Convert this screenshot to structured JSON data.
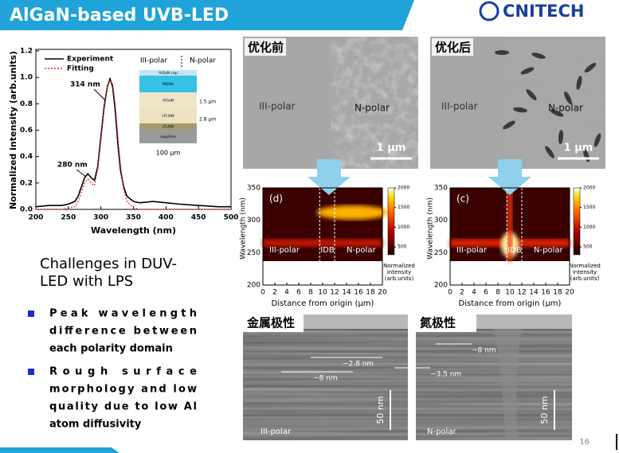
{
  "header": {
    "title": "AlGaN-based UVB-LED",
    "logo": "CNITECH"
  },
  "chart_data": {
    "type": "line",
    "xlabel": "Wavelength (nm)",
    "ylabel": "Normalized intensity (arb.units)",
    "x": [
      200,
      220,
      240,
      250,
      260,
      265,
      270,
      275,
      280,
      285,
      290,
      295,
      300,
      305,
      310,
      314,
      318,
      322,
      326,
      330,
      335,
      340,
      350,
      360,
      380,
      400,
      420,
      450,
      480,
      500
    ],
    "series": [
      {
        "name": "Experiment",
        "color": "#000000",
        "values": [
          0.02,
          0.03,
          0.03,
          0.04,
          0.06,
          0.1,
          0.17,
          0.24,
          0.27,
          0.24,
          0.22,
          0.32,
          0.55,
          0.78,
          0.93,
          0.99,
          0.93,
          0.75,
          0.5,
          0.3,
          0.17,
          0.1,
          0.06,
          0.05,
          0.06,
          0.05,
          0.04,
          0.03,
          0.02,
          0.02
        ]
      },
      {
        "name": "Fitting",
        "color": "#e03030",
        "values": [
          0,
          0,
          0,
          0.01,
          0.02,
          0.06,
          0.13,
          0.2,
          0.23,
          0.2,
          0.18,
          0.3,
          0.52,
          0.76,
          0.93,
          0.98,
          0.95,
          0.8,
          0.56,
          0.34,
          0.15,
          0.06,
          0.01,
          0,
          0,
          0,
          0,
          0,
          0,
          0
        ]
      }
    ],
    "xlim": [
      200,
      500
    ],
    "ylim": [
      0,
      1.2
    ],
    "xticks": [
      200,
      250,
      300,
      350,
      400,
      450,
      500
    ],
    "yticks": [
      {
        "value": 0,
        "label": "0.0"
      },
      {
        "value": 0.2,
        "label": "0.2"
      },
      {
        "value": 0.4,
        "label": "0.4"
      },
      {
        "value": 0.6,
        "label": "0.6"
      },
      {
        "value": 0.8,
        "label": "0.8"
      },
      {
        "value": 1.0,
        "label": "1.0"
      },
      {
        "value": 1.2,
        "label": "1.2"
      }
    ],
    "annotations": [
      "314 nm",
      "280 nm",
      "III-polar",
      "N-polar"
    ],
    "inset": {
      "layers": [
        "AlGaN cap",
        "MQWs",
        "AlGaN",
        "HT-AlN",
        "LT-AlN",
        "sapphire"
      ],
      "dimensions": [
        "1.5 μm",
        "2.8 μm",
        "100 μm"
      ]
    }
  },
  "micrographs": [
    {
      "title": "优化前",
      "labels": [
        "III-polar",
        "N-polar"
      ],
      "scale": "1 μm"
    },
    {
      "title": "优化后",
      "labels": [
        "III-polar",
        "N-polar"
      ],
      "scale": "1 μm"
    }
  ],
  "heatmap_axes": {
    "xlabel": "Distance from origin (μm)",
    "ylabel": "Wavelength (nm)",
    "xlim": [
      0,
      20
    ],
    "xticks": [
      0,
      2,
      4,
      6,
      8,
      10,
      12,
      14,
      16,
      18,
      20
    ],
    "ylim": [
      200,
      350
    ],
    "yticks": [
      200,
      250,
      300,
      350
    ],
    "clim": [
      300,
      2000
    ],
    "colorbar_ticks": [
      500,
      1000,
      1500,
      2000
    ],
    "colorbar_label": [
      "Normalized",
      "intensity",
      "(arb.units)"
    ]
  },
  "heatmaps": [
    {
      "panel": "(d)",
      "regions": [
        "III-polar",
        "IDB",
        "N-polar"
      ]
    },
    {
      "panel": "(c)",
      "regions": [
        "III-polar",
        "IDB",
        "N-polar"
      ]
    }
  ],
  "tem": [
    {
      "title": "金属极性",
      "label": "III-polar",
      "measures": [
        "~2.8 nm",
        "~8 nm"
      ],
      "scale": "50 nm"
    },
    {
      "title": "氮极性",
      "label": "N-polar",
      "measures": [
        "~8 nm",
        "~3.5 nm"
      ],
      "scale": "50 nm"
    }
  ],
  "challenges": {
    "heading": [
      "Challenges in DUV-",
      "LED with LPS"
    ],
    "bullets": [
      [
        "Peak wavelength",
        "difference between",
        "each polarity domain"
      ],
      [
        "Rough surface",
        "morphology and low",
        "quality due to low Al",
        "atom diffusivity"
      ]
    ]
  },
  "page_number": "16"
}
